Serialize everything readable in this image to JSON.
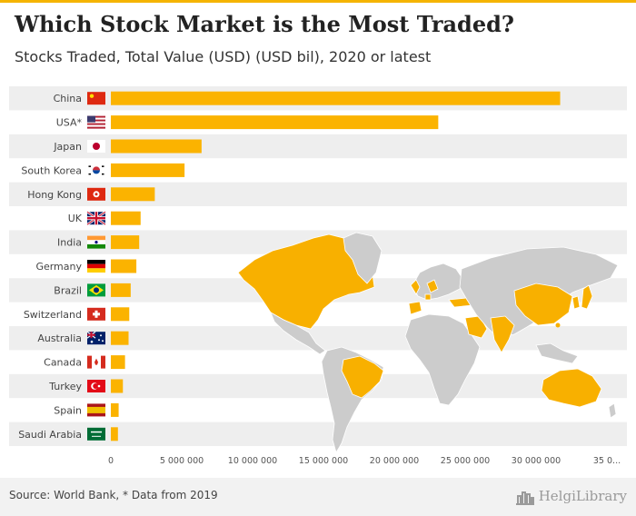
{
  "header": {
    "title": "Which Stock Market is the Most Traded?",
    "subtitle": "Stocks Traded, Total Value (USD) (USD bil), 2020 or latest"
  },
  "footer": {
    "source": "Source: World Bank, * Data from 2019",
    "brand": "HelgiLibrary"
  },
  "colors": {
    "bar": "#fbb300",
    "band": "#eeeeee",
    "accent": "#f5b400",
    "map_land": "#cccccc",
    "map_highlight": "#f8b000"
  },
  "chart_data": {
    "type": "bar",
    "orientation": "horizontal",
    "categories": [
      "China",
      "USA*",
      "Japan",
      "South Korea",
      "Hong Kong",
      "UK",
      "India",
      "Germany",
      "Brazil",
      "Switzerland",
      "Australia",
      "Canada",
      "Turkey",
      "Spain",
      "Saudi Arabia"
    ],
    "flags": [
      "flag-china-icon",
      "flag-usa-icon",
      "flag-japan-icon",
      "flag-south-korea-icon",
      "flag-hong-kong-icon",
      "flag-uk-icon",
      "flag-india-icon",
      "flag-germany-icon",
      "flag-brazil-icon",
      "flag-switzerland-icon",
      "flag-australia-icon",
      "flag-canada-icon",
      "flag-turkey-icon",
      "flag-spain-icon",
      "flag-saudi-arabia-icon"
    ],
    "values": [
      31700000,
      23100000,
      6400000,
      5200000,
      3100000,
      2100000,
      2000000,
      1800000,
      1400000,
      1300000,
      1250000,
      1000000,
      850000,
      550000,
      500000
    ],
    "xlim": [
      0,
      35000000
    ],
    "xticks": [
      0,
      5000000,
      10000000,
      15000000,
      20000000,
      25000000,
      30000000,
      35000000
    ],
    "xtick_labels": [
      "0",
      "5 000 000",
      "10 000 000",
      "15 000 000",
      "20 000 000",
      "25 000 000",
      "30 000 000",
      "35 0..."
    ],
    "background": "world-map",
    "grid": false,
    "legend": "none"
  }
}
